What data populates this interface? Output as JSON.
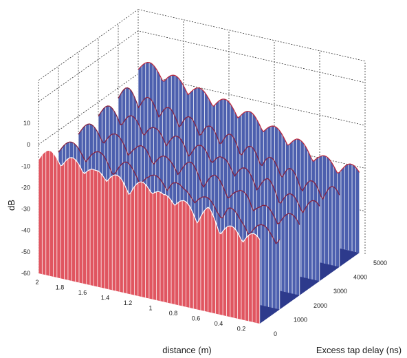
{
  "chart_data": {
    "type": "bar",
    "title": "",
    "zlabel": "dB",
    "xlabel": "distance (m)",
    "ylabel": "Excess tap delay (ns)",
    "z_ticks": [
      "10",
      "0",
      "-10",
      "-20",
      "-30",
      "-40",
      "-50",
      "-60"
    ],
    "x_ticks": [
      "2",
      "1.8",
      "1.6",
      "1.4",
      "1.2",
      "1",
      "0.8",
      "0.6",
      "0.4",
      "0.2"
    ],
    "y_ticks": [
      "0",
      "1000",
      "2000",
      "3000",
      "4000",
      "5000"
    ],
    "z_range": [
      -60,
      10
    ],
    "x_range": [
      0,
      2
    ],
    "y_range": [
      0,
      5000
    ],
    "grid": true,
    "series": [
      {
        "color": "#e05560",
        "delay_ns": 0,
        "envelope_db": [
          {
            "x": 2.0,
            "db": -1
          },
          {
            "x": 1.8,
            "db": -2
          },
          {
            "x": 1.6,
            "db": -3
          },
          {
            "x": 1.5,
            "db": -6
          },
          {
            "x": 1.4,
            "db": -4
          },
          {
            "x": 1.2,
            "db": -8
          },
          {
            "x": 1.0,
            "db": -5
          },
          {
            "x": 0.9,
            "db": -10
          },
          {
            "x": 0.8,
            "db": -8
          },
          {
            "x": 0.6,
            "db": -14
          },
          {
            "x": 0.5,
            "db": -11
          },
          {
            "x": 0.4,
            "db": -17
          },
          {
            "x": 0.2,
            "db": -18
          },
          {
            "x": 0.05,
            "db": -19
          }
        ]
      },
      {
        "color": "#4c5fae",
        "delay_ns": 5000,
        "envelope_db": [
          {
            "x": 2.0,
            "db": 8
          },
          {
            "x": 1.8,
            "db": 5
          },
          {
            "x": 1.6,
            "db": 2
          },
          {
            "x": 1.4,
            "db": -1
          },
          {
            "x": 1.2,
            "db": -3
          },
          {
            "x": 1.0,
            "db": -6
          },
          {
            "x": 0.8,
            "db": -10
          },
          {
            "x": 0.6,
            "db": -13
          },
          {
            "x": 0.4,
            "db": -18
          },
          {
            "x": 0.2,
            "db": -20
          },
          {
            "x": 0.05,
            "db": -19
          }
        ]
      }
    ],
    "floor_color": "#2d3a8c"
  }
}
